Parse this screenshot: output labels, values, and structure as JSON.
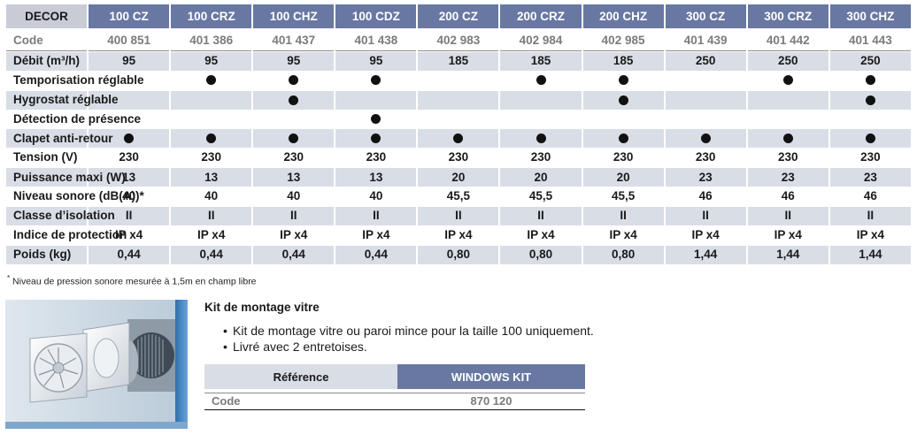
{
  "table": {
    "header": [
      "DECOR",
      "100 CZ",
      "100 CRZ",
      "100 CHZ",
      "100 CDZ",
      "200 CZ",
      "200 CRZ",
      "200 CHZ",
      "300 CZ",
      "300 CRZ",
      "300 CHZ"
    ],
    "rows": [
      {
        "label": "Code",
        "values": [
          "400 851",
          "401 386",
          "401 437",
          "401 438",
          "402 983",
          "402 984",
          "402 985",
          "401 439",
          "401 442",
          "401 443"
        ]
      },
      {
        "label": "Débit (m³/h)",
        "values": [
          "95",
          "95",
          "95",
          "95",
          "185",
          "185",
          "185",
          "250",
          "250",
          "250"
        ]
      },
      {
        "label": "Temporisation réglable",
        "values": [
          "",
          "●",
          "●",
          "●",
          "",
          "●",
          "●",
          "",
          "●",
          "●"
        ]
      },
      {
        "label": "Hygrostat réglable",
        "values": [
          "",
          "",
          "●",
          "",
          "",
          "",
          "●",
          "",
          "",
          "●"
        ]
      },
      {
        "label": "Détection de présence",
        "values": [
          "",
          "",
          "",
          "●",
          "",
          "",
          "",
          "",
          "",
          ""
        ]
      },
      {
        "label": "Clapet anti-retour",
        "values": [
          "●",
          "●",
          "●",
          "●",
          "●",
          "●",
          "●",
          "●",
          "●",
          "●"
        ]
      },
      {
        "label": "Tension (V)",
        "values": [
          "230",
          "230",
          "230",
          "230",
          "230",
          "230",
          "230",
          "230",
          "230",
          "230"
        ]
      },
      {
        "label": "Puissance maxi (W)",
        "values": [
          "13",
          "13",
          "13",
          "13",
          "20",
          "20",
          "20",
          "23",
          "23",
          "23"
        ]
      },
      {
        "label": "Niveau sonore (dB(A))*",
        "values": [
          "40",
          "40",
          "40",
          "40",
          "45,5",
          "45,5",
          "45,5",
          "46",
          "46",
          "46"
        ]
      },
      {
        "label": "Classe d’isolation",
        "values": [
          "II",
          "II",
          "II",
          "II",
          "II",
          "II",
          "II",
          "II",
          "II",
          "II"
        ]
      },
      {
        "label": "Indice de protection",
        "values": [
          "IP x4",
          "IP x4",
          "IP x4",
          "IP x4",
          "IP x4",
          "IP x4",
          "IP x4",
          "IP x4",
          "IP x4",
          "IP x4"
        ]
      },
      {
        "label": "Poids (kg)",
        "values": [
          "0,44",
          "0,44",
          "0,44",
          "0,44",
          "0,80",
          "0,80",
          "0,80",
          "1,44",
          "1,44",
          "1,44"
        ]
      }
    ]
  },
  "footnote": {
    "mark": "*",
    "text": " Niveau de pression sonore mesurée à 1,5m en champ libre"
  },
  "kit": {
    "title": "Kit de montage vitre",
    "bullets": [
      "Kit de montage vitre ou paroi mince pour la taille 100 uniquement.",
      "Livré avec 2 entretoises."
    ],
    "ref_label": "Référence",
    "ref_value": "WINDOWS KIT",
    "code_label": "Code",
    "code_value": "870 120"
  },
  "colors": {
    "header_blue": "#6878a3",
    "row_shade": "#d9dde6",
    "code_grey": "#7b7b7b"
  }
}
